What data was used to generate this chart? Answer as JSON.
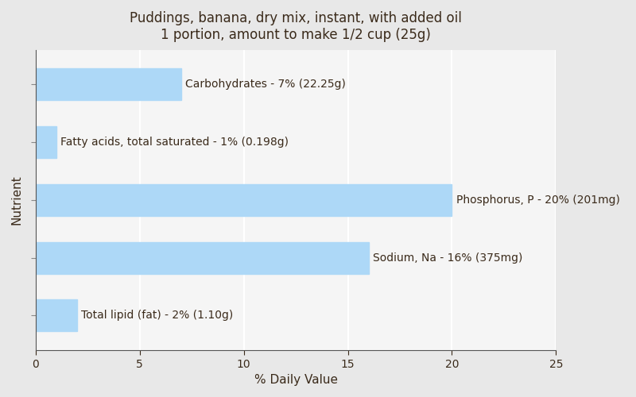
{
  "title_line1": "Puddings, banana, dry mix, instant, with added oil",
  "title_line2": "1 portion, amount to make 1/2 cup (25g)",
  "xlabel": "% Daily Value",
  "ylabel": "Nutrient",
  "background_color": "#e8e8e8",
  "plot_bg_color": "#f5f5f5",
  "bar_color": "#add8f7",
  "nutrients_top_to_bottom": [
    "Carbohydrates - 7% (22.25g)",
    "Fatty acids, total saturated - 1% (0.198g)",
    "Phosphorus, P - 20% (201mg)",
    "Sodium, Na - 16% (375mg)",
    "Total lipid (fat) - 2% (1.10g)"
  ],
  "values_top_to_bottom": [
    7,
    1,
    20,
    16,
    2
  ],
  "label_outside": [
    true,
    true,
    false,
    false,
    true
  ],
  "xlim": [
    0,
    25
  ],
  "xticks": [
    0,
    5,
    10,
    15,
    20,
    25
  ],
  "title_fontsize": 12,
  "label_fontsize": 10,
  "axis_label_fontsize": 11,
  "text_color": "#3a2a1a",
  "grid_color": "#ffffff",
  "bar_height": 0.55
}
